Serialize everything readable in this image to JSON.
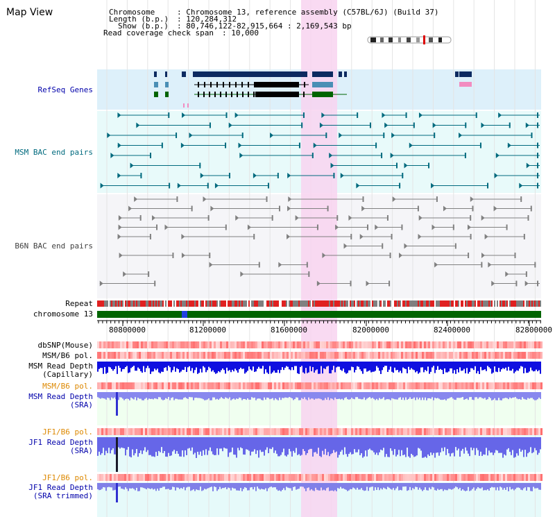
{
  "title": "Map View",
  "info": {
    "chromosome_key": "Chromosome   ",
    "chromosome_val": ": Chromosome 13, reference assembly (C57BL/6J) (Build 37)",
    "length_key": "Length (b.p.)",
    "length_val": ": 120,284,312",
    "show_key": "Show (b.p.)",
    "show_val": ": 80,746,122-82,915,664 : 2,169,543 bp",
    "coverage_key": "Read coverage check span",
    "coverage_val": ": 10,000"
  },
  "tracks": {
    "refseq": "RefSeq Genes",
    "msm_bac": "MSM BAC end pairs",
    "b6n_bac": "B6N BAC end pairs",
    "repeat": "Repeat",
    "chromosome": "chromosome 13",
    "dbsnp": "dbSNP(Mouse)",
    "msm_b6_pol_1": "MSM/B6 pol.",
    "msm_depth_cap_1": "MSM Read Depth",
    "msm_depth_cap_2": "(Capillary)",
    "msm_b6_pol_2": "MSM/B6 pol.",
    "msm_depth_sra_1": "MSM Read Depth",
    "msm_depth_sra_2": "(SRA)",
    "jf1_b6_pol_1": "JF1/B6 pol.",
    "jf1_depth_sra_1": "JF1 Read Depth",
    "jf1_depth_sra_2": "(SRA)",
    "jf1_b6_pol_2": "JF1/B6 pol.",
    "jf1_depth_trim_1": "JF1 Read Depth",
    "jf1_depth_trim_2": "(SRA trimmed)"
  },
  "axis_ticks": [
    "80800000",
    "81200000",
    "81600000",
    "82000000",
    "82400000",
    "82800000"
  ],
  "colors": {
    "refseq_bg": "#ddf0fa",
    "bac_bg": "#e8fafa",
    "b6n_bg": "#f5f5f8",
    "highlight": "#f8d4f0",
    "navy": "#0c2a60",
    "teal": "#006a7e",
    "green": "#006400",
    "gray": "#808080",
    "blue": "#1010e0",
    "label_blue": "#0000aa",
    "label_teal": "#006a7e",
    "label_orange": "#dd8800"
  }
}
